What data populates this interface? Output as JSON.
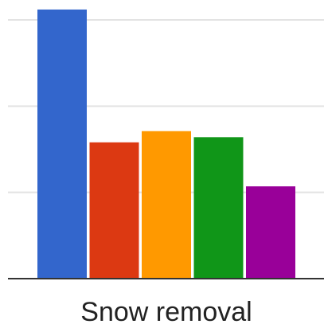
{
  "chart_data": {
    "type": "bar",
    "categories": [
      "Snow removal"
    ],
    "series": [
      {
        "color": "#3366cc",
        "values": [
          3.12
        ]
      },
      {
        "color": "#dc3912",
        "values": [
          1.58
        ]
      },
      {
        "color": "#ff9900",
        "values": [
          1.71
        ]
      },
      {
        "color": "#109618",
        "values": [
          1.64
        ]
      },
      {
        "color": "#990099",
        "values": [
          1.07
        ]
      }
    ],
    "ylim": [
      0,
      3.2
    ],
    "yticks": [
      0,
      1,
      2,
      3
    ],
    "grid": true
  }
}
